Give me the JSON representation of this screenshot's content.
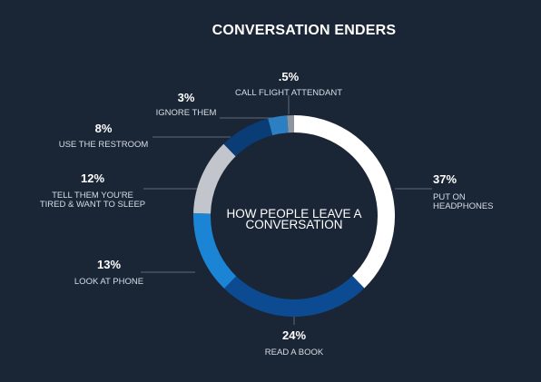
{
  "chart_data": {
    "type": "pie",
    "title": "CONVERSATION ENDERS",
    "center_label": [
      "HOW PEOPLE LEAVE A",
      "CONVERSATION"
    ],
    "slices": [
      {
        "name": "PUT ON HEADPHONES",
        "value": 37,
        "value_label": "37%",
        "label_lines": [
          "PUT ON",
          "HEADPHONES"
        ],
        "color": "#ffffff"
      },
      {
        "name": "READ A BOOK",
        "value": 24,
        "value_label": "24%",
        "label_lines": [
          "READ A BOOK"
        ],
        "color": "#0c4b91"
      },
      {
        "name": "LOOK AT PHONE",
        "value": 13,
        "value_label": "13%",
        "label_lines": [
          "LOOK AT PHONE"
        ],
        "color": "#1c84d4"
      },
      {
        "name": "TELL THEM YOU'RE TIRED & WANT TO SLEEP",
        "value": 12,
        "value_label": "12%",
        "label_lines": [
          "TELL THEM YOU'RE",
          "TIRED & WANT TO SLEEP"
        ],
        "color": "#c2c6cc"
      },
      {
        "name": "USE THE RESTROOM",
        "value": 8,
        "value_label": "8%",
        "label_lines": [
          "USE THE RESTROOM"
        ],
        "color": "#0a3d75"
      },
      {
        "name": "IGNORE THEM",
        "value": 3,
        "value_label": "3%",
        "label_lines": [
          "IGNORE THEM"
        ],
        "color": "#2d7fc4"
      },
      {
        "name": "CALL FLIGHT ATTENDANT",
        "value": 0.5,
        "value_label": ".5%",
        "label_lines": [
          "CALL FLIGHT ATTENDANT"
        ],
        "color": "#8e959e"
      }
    ]
  }
}
